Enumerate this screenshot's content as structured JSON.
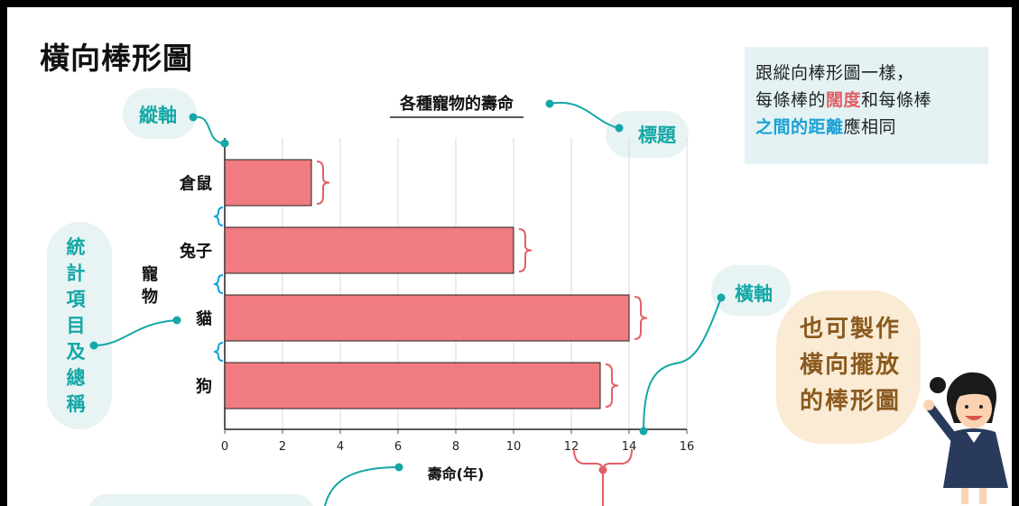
{
  "page_title": "橫向棒形圖",
  "note": {
    "line1": "跟縱向棒形圖一樣，",
    "line2_pre": "每條棒的",
    "line2_hl": "闊度",
    "line2_post": "和每條棒",
    "line3_hl": "之間的距離",
    "line3_post": "應相同"
  },
  "annotations": {
    "y_axis": "縱軸",
    "title": "標題",
    "x_axis": "橫軸",
    "items": "統計項目及總稱"
  },
  "speech": {
    "line1": "也可製作",
    "line2": "橫向擺放",
    "line3": "的棒形圖"
  },
  "colors": {
    "bar": "#f07b80",
    "teal": "#13a7a7",
    "brace_red": "#e35f66",
    "brace_blue": "#1aa2d6"
  },
  "chart_data": {
    "type": "bar",
    "orientation": "horizontal",
    "title": "各種寵物的壽命",
    "xlabel": "壽命(年)",
    "ylabel": "寵物",
    "categories": [
      "倉鼠",
      "兔子",
      "貓",
      "狗"
    ],
    "values": [
      3,
      10,
      14,
      13
    ],
    "xlim": [
      0,
      16
    ],
    "xticks": [
      "0",
      "2",
      "4",
      "6",
      "8",
      "10",
      "12",
      "14",
      "16"
    ],
    "grid": true
  }
}
